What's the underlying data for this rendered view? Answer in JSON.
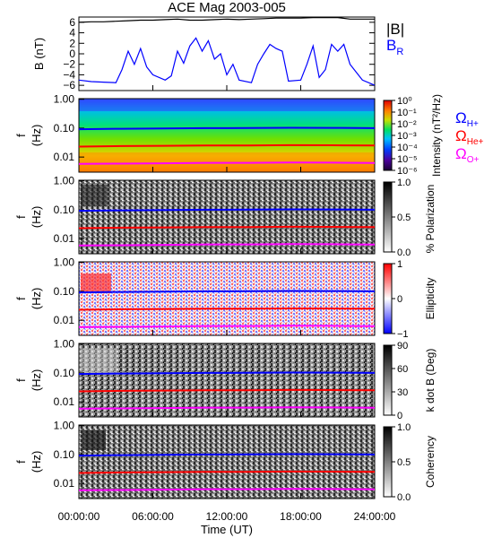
{
  "chart_data": {
    "type": "line",
    "title": "ACE Mag 2003-005",
    "xlabel": "Time (UT)",
    "x_ticks": [
      "00:00:00",
      "06:00:00",
      "12:00:00",
      "18:00:00",
      "24:00:00"
    ],
    "x_range_hours": [
      0,
      24
    ],
    "panels": [
      {
        "name": "field",
        "ylabel": "B (nT)",
        "y_ticks": [
          "6",
          "4",
          "2",
          "0",
          "−2",
          "−4",
          "−6"
        ],
        "ylim": [
          -7,
          7
        ],
        "legend": [
          "|B|",
          "B"
        ],
        "legend_sub": [
          "",
          "R"
        ],
        "series": [
          {
            "name": "|B|",
            "color": "#000000",
            "x": [
              0,
              1,
              2,
              3,
              4,
              5,
              6,
              7,
              8,
              9,
              10,
              11,
              12,
              13,
              14,
              15,
              16,
              17,
              18,
              19,
              20,
              21,
              22,
              23,
              24
            ],
            "values": [
              6.0,
              6.1,
              6.1,
              6.2,
              6.3,
              6.4,
              6.4,
              6.5,
              6.6,
              6.4,
              6.4,
              6.5,
              6.6,
              6.5,
              6.6,
              6.7,
              6.8,
              6.8,
              6.8,
              6.9,
              6.9,
              6.9,
              6.6,
              6.6,
              6.6
            ]
          },
          {
            "name": "B_R",
            "color": "#0000ff",
            "x": [
              0,
              1,
              2,
              3,
              3.5,
              4,
              4.5,
              5,
              5.5,
              6,
              7,
              7.5,
              8,
              8.5,
              9,
              9.5,
              10,
              10.5,
              11,
              11.5,
              12,
              12.5,
              13,
              14,
              14.5,
              15,
              15.5,
              16,
              16.5,
              17,
              18,
              18.5,
              19,
              19.5,
              20,
              20.5,
              21,
              21.5,
              22,
              22.5,
              23,
              24
            ],
            "values": [
              -5.0,
              -5.3,
              -5.4,
              -5.5,
              -3.0,
              0.5,
              -2.0,
              1.0,
              -2.5,
              -4.0,
              -5.0,
              -4.2,
              0.5,
              -1.8,
              1.5,
              3.0,
              0.5,
              2.5,
              -1.0,
              0.0,
              -4.0,
              -2.0,
              -5.0,
              -5.5,
              -2.0,
              0.0,
              1.8,
              1.0,
              0.5,
              -5.2,
              -5.0,
              -2.0,
              1.5,
              -4.5,
              -3.0,
              1.8,
              0.5,
              1.8,
              -2.0,
              -3.5,
              -5.0,
              -6.0
            ]
          }
        ]
      },
      {
        "name": "power",
        "ylabel": "f (Hz)",
        "y_ticks": [
          "1.00",
          "0.10",
          "0.01"
        ],
        "ylim": [
          0.003,
          1.0
        ],
        "yscale": "log",
        "colorbar_label": "Intensity (nT²/Hz)",
        "colorbar_ticks": [
          "10⁰",
          "10⁻¹",
          "10⁻²",
          "10⁻³",
          "10⁻⁴",
          "10⁻⁵",
          "10⁻⁶"
        ],
        "colormap": "rainbow",
        "legend": [
          "Ω",
          "Ω",
          "Ω"
        ],
        "legend_sub": [
          "H+",
          "He+",
          "O+"
        ],
        "legend_colors": [
          "#0000ff",
          "#ff0000",
          "#ff00ff"
        ]
      },
      {
        "name": "polarization",
        "ylabel": "f (Hz)",
        "y_ticks": [
          "1.00",
          "0.10",
          "0.01"
        ],
        "yscale": "log",
        "colorbar_label": "% Polarization",
        "colorbar_ticks": [
          "1.0",
          "0.5",
          "0.0"
        ],
        "colormap": "gray"
      },
      {
        "name": "ellipticity",
        "ylabel": "f (Hz)",
        "y_ticks": [
          "1.00",
          "0.10",
          "0.01"
        ],
        "yscale": "log",
        "colorbar_label": "Ellipticity",
        "colorbar_ticks": [
          "1",
          "0",
          "−1"
        ],
        "colormap": "red-white-blue"
      },
      {
        "name": "kdotb",
        "ylabel": "f (Hz)",
        "y_ticks": [
          "1.00",
          "0.10",
          "0.01"
        ],
        "yscale": "log",
        "colorbar_label": "k dot B (Deg)",
        "colorbar_ticks": [
          "90",
          "60",
          "30",
          "0"
        ],
        "colormap": "gray"
      },
      {
        "name": "coherency",
        "ylabel": "f (Hz)",
        "y_ticks": [
          "1.00",
          "0.10",
          "0.01"
        ],
        "yscale": "log",
        "colorbar_label": "Coherency",
        "colorbar_ticks": [
          "1.0",
          "0.5",
          "0.0"
        ],
        "colormap": "gray"
      }
    ],
    "gyrofrequency_lines": [
      {
        "name": "ΩH+",
        "color": "#0000ff",
        "values_hz": [
          0.092,
          0.095,
          0.098,
          0.1,
          0.101,
          0.103,
          0.102,
          0.1
        ]
      },
      {
        "name": "ΩHe+",
        "color": "#ff0000",
        "values_hz": [
          0.023,
          0.024,
          0.0245,
          0.025,
          0.0252,
          0.0258,
          0.0255,
          0.025
        ]
      },
      {
        "name": "ΩO+",
        "color": "#ff00ff",
        "values_hz": [
          0.0058,
          0.0059,
          0.0061,
          0.0063,
          0.0063,
          0.0065,
          0.0064,
          0.0062
        ]
      }
    ]
  }
}
